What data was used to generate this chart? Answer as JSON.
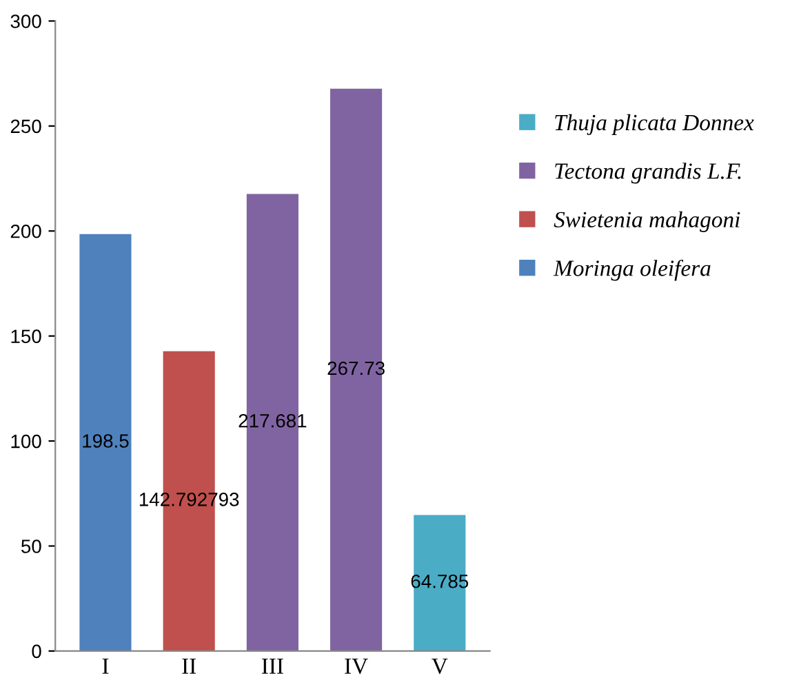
{
  "chart_data": {
    "type": "bar",
    "categories": [
      "I",
      "II",
      "III",
      "IV",
      "V"
    ],
    "series": [
      {
        "name": "Moringa oleifera",
        "color": "#4f81bd",
        "values": [
          198.5,
          null,
          null,
          null,
          null
        ]
      },
      {
        "name": "Swietenia mahagoni",
        "color": "#c0504d",
        "values": [
          null,
          142.792793,
          null,
          null,
          null
        ]
      },
      {
        "name": "Tectona grandis L.F.",
        "color": "#8064a2",
        "values": [
          null,
          null,
          217.681,
          267.73,
          null
        ]
      },
      {
        "name": "Thuja plicata Donnex",
        "color": "#4bacc6",
        "values": [
          null,
          null,
          null,
          null,
          64.785
        ]
      }
    ],
    "ylim": [
      0,
      300
    ],
    "yticks": [
      0,
      50,
      100,
      150,
      200,
      250,
      300
    ],
    "data_labels": true,
    "grid": false,
    "legend": "right"
  }
}
